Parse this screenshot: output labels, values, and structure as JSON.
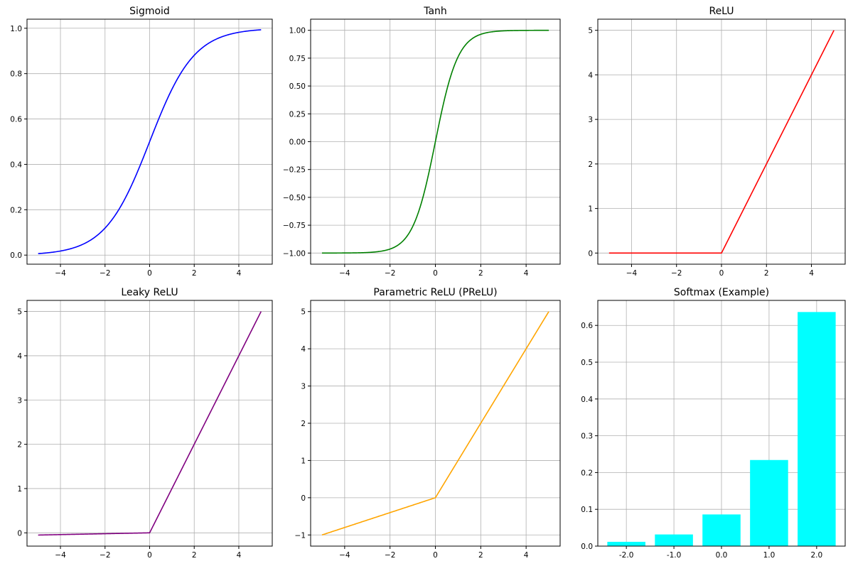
{
  "chart_data": [
    {
      "type": "line",
      "title": "Sigmoid",
      "function": "sigmoid",
      "color": "#0000ff",
      "x_range": [
        -5,
        5
      ],
      "xlim": [
        -5.5,
        5.5
      ],
      "ylim": [
        -0.04,
        1.04
      ],
      "xticks": [
        -4,
        -2,
        0,
        2,
        4
      ],
      "xtick_labels": [
        "−4",
        "−2",
        "0",
        "2",
        "4"
      ],
      "yticks": [
        0.0,
        0.2,
        0.4,
        0.6,
        0.8,
        1.0
      ],
      "ytick_labels": [
        "0.0",
        "0.2",
        "0.4",
        "0.6",
        "0.8",
        "1.0"
      ],
      "grid": true
    },
    {
      "type": "line",
      "title": "Tanh",
      "function": "tanh",
      "color": "#008000",
      "x_range": [
        -5,
        5
      ],
      "xlim": [
        -5.5,
        5.5
      ],
      "ylim": [
        -1.1,
        1.1
      ],
      "xticks": [
        -4,
        -2,
        0,
        2,
        4
      ],
      "xtick_labels": [
        "−4",
        "−2",
        "0",
        "2",
        "4"
      ],
      "yticks": [
        -1.0,
        -0.75,
        -0.5,
        -0.25,
        0.0,
        0.25,
        0.5,
        0.75,
        1.0
      ],
      "ytick_labels": [
        "−1.00",
        "−0.75",
        "−0.50",
        "−0.25",
        "0.00",
        "0.25",
        "0.50",
        "0.75",
        "1.00"
      ],
      "grid": true
    },
    {
      "type": "line",
      "title": "ReLU",
      "function": "relu",
      "color": "#ff0000",
      "x_range": [
        -5,
        5
      ],
      "xlim": [
        -5.5,
        5.5
      ],
      "ylim": [
        -0.25,
        5.25
      ],
      "xticks": [
        -4,
        -2,
        0,
        2,
        4
      ],
      "xtick_labels": [
        "−4",
        "−2",
        "0",
        "2",
        "4"
      ],
      "yticks": [
        0,
        1,
        2,
        3,
        4,
        5
      ],
      "ytick_labels": [
        "0",
        "1",
        "2",
        "3",
        "4",
        "5"
      ],
      "grid": true
    },
    {
      "type": "line",
      "title": "Leaky ReLU",
      "function": "leaky_relu",
      "slope": 0.01,
      "color": "#800080",
      "x_range": [
        -5,
        5
      ],
      "xlim": [
        -5.5,
        5.5
      ],
      "ylim": [
        -0.3,
        5.25
      ],
      "xticks": [
        -4,
        -2,
        0,
        2,
        4
      ],
      "xtick_labels": [
        "−4",
        "−2",
        "0",
        "2",
        "4"
      ],
      "yticks": [
        0,
        1,
        2,
        3,
        4,
        5
      ],
      "ytick_labels": [
        "0",
        "1",
        "2",
        "3",
        "4",
        "5"
      ],
      "grid": true
    },
    {
      "type": "line",
      "title": "Parametric ReLU (PReLU)",
      "function": "prelu",
      "slope": 0.2,
      "color": "#ffa500",
      "x_range": [
        -5,
        5
      ],
      "xlim": [
        -5.5,
        5.5
      ],
      "ylim": [
        -1.3,
        5.3
      ],
      "xticks": [
        -4,
        -2,
        0,
        2,
        4
      ],
      "xtick_labels": [
        "−4",
        "−2",
        "0",
        "2",
        "4"
      ],
      "yticks": [
        -1,
        0,
        1,
        2,
        3,
        4,
        5
      ],
      "ytick_labels": [
        "−1",
        "0",
        "1",
        "2",
        "3",
        "4",
        "5"
      ],
      "grid": true
    },
    {
      "type": "bar",
      "title": "Softmax (Example)",
      "color": "#00ffff",
      "categories": [
        "-2.0",
        "-1.0",
        "0.0",
        "1.0",
        "2.0"
      ],
      "values": [
        0.0117,
        0.0317,
        0.0861,
        0.2341,
        0.6364
      ],
      "ylim": [
        0.0,
        0.668
      ],
      "yticks": [
        0.0,
        0.1,
        0.2,
        0.3,
        0.4,
        0.5,
        0.6
      ],
      "ytick_labels": [
        "0.0",
        "0.1",
        "0.2",
        "0.3",
        "0.4",
        "0.5",
        "0.6"
      ],
      "grid": true
    }
  ]
}
